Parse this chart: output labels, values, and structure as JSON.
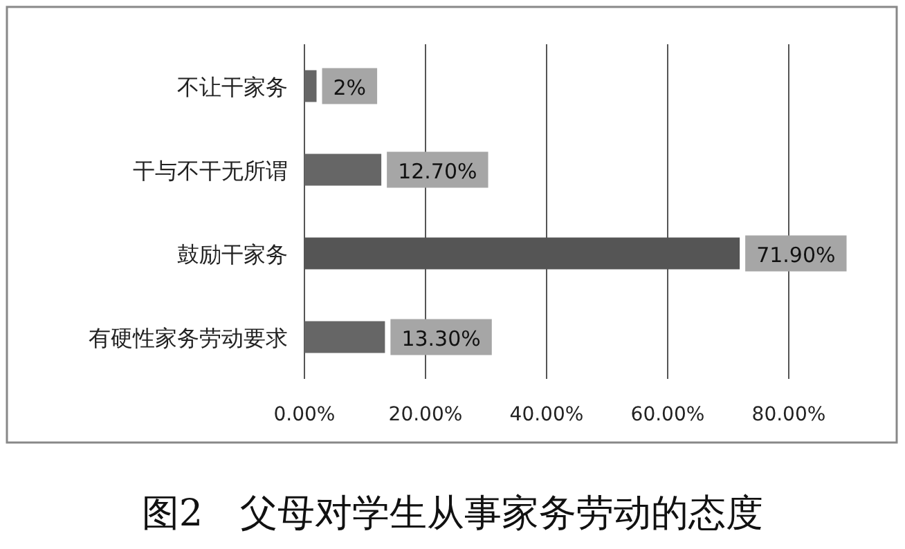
{
  "chart_data": {
    "type": "bar",
    "orientation": "horizontal",
    "title": "图2　父母对学生从事家务劳动的态度",
    "categories": [
      "不让干家务",
      "干与不干无所谓",
      "鼓励干家务",
      "有硬性家务劳动要求"
    ],
    "values": [
      2,
      12.7,
      71.9,
      13.3
    ],
    "colors": [
      "#666666",
      "#666666",
      "#555555",
      "#666666"
    ],
    "value_labels": [
      "2%",
      "12.70%",
      "71.90%",
      "13.30%"
    ],
    "xlim": [
      0,
      80
    ],
    "xticks": [
      {
        "value": 0,
        "label": "0.00%"
      },
      {
        "value": 20,
        "label": "20.00%"
      },
      {
        "value": 40,
        "label": "40.00%"
      },
      {
        "value": 60,
        "label": "60.00%"
      },
      {
        "value": 80,
        "label": "80.00%"
      }
    ],
    "grid": "x"
  }
}
